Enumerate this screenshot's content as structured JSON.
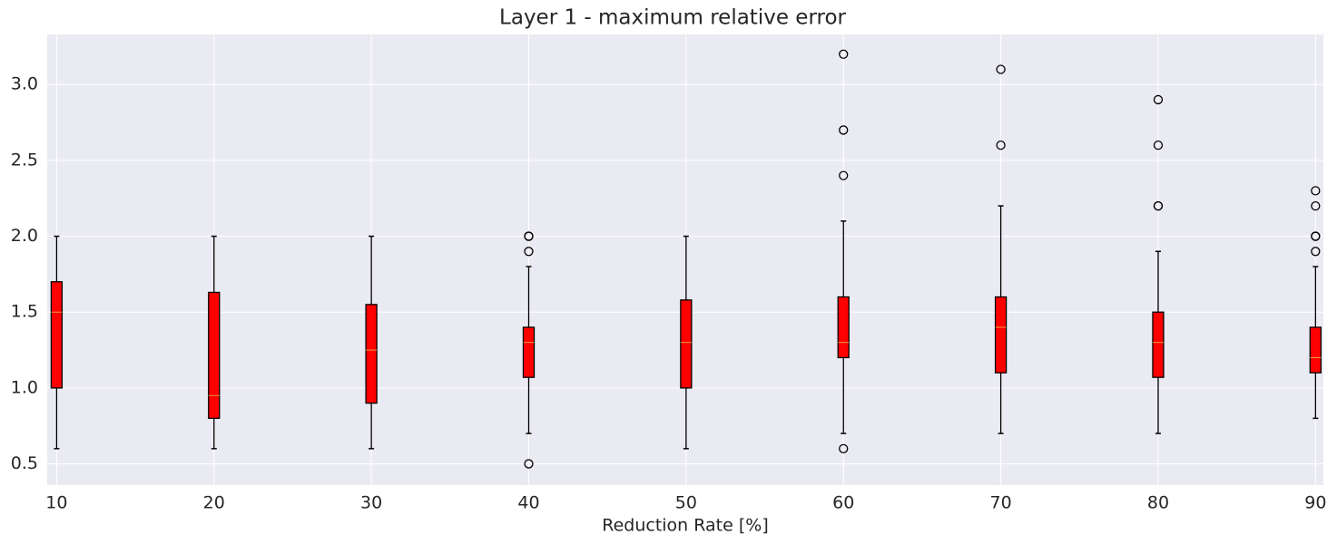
{
  "chart_data": {
    "type": "box",
    "title": "Layer 1 - maximum relative error",
    "x_label": "Reduction Rate [%]",
    "color": "#ff0000",
    "median_color": "#e6a23c",
    "grid": true,
    "xlim": [
      9.4,
      90.5
    ],
    "ylim": [
      0.36,
      3.33
    ],
    "xticks": [
      10,
      20,
      30,
      40,
      50,
      60,
      70,
      80,
      90
    ],
    "yticks": [
      0.5,
      {
        "value": 1.0,
        "label": "1.0"
      },
      1.5,
      {
        "value": 2.0,
        "label": "2.0"
      },
      2.5,
      {
        "value": 3.0,
        "label": "3.0"
      }
    ],
    "boxes": [
      {
        "x": 10,
        "whislo": 0.6,
        "q1": 1.0,
        "med": 1.5,
        "q3": 1.7,
        "whishi": 2.0,
        "fliers": []
      },
      {
        "x": 20,
        "whislo": 0.6,
        "q1": 0.8,
        "med": 0.95,
        "q3": 1.63,
        "whishi": 2.0,
        "fliers": []
      },
      {
        "x": 30,
        "whislo": 0.6,
        "q1": 0.9,
        "med": 1.25,
        "q3": 1.55,
        "whishi": 2.0,
        "fliers": []
      },
      {
        "x": 40,
        "whislo": 0.7,
        "q1": 1.07,
        "med": 1.3,
        "q3": 1.4,
        "whishi": 1.8,
        "fliers": [
          0.5,
          1.9,
          2.0,
          2.0
        ]
      },
      {
        "x": 50,
        "whislo": 0.6,
        "q1": 1.0,
        "med": 1.3,
        "q3": 1.58,
        "whishi": 2.0,
        "fliers": []
      },
      {
        "x": 60,
        "whislo": 0.7,
        "q1": 1.2,
        "med": 1.3,
        "q3": 1.6,
        "whishi": 2.1,
        "fliers": [
          0.6,
          2.4,
          2.7,
          3.2
        ]
      },
      {
        "x": 70,
        "whislo": 0.7,
        "q1": 1.1,
        "med": 1.4,
        "q3": 1.6,
        "whishi": 2.2,
        "fliers": [
          2.6,
          3.1
        ]
      },
      {
        "x": 80,
        "whislo": 0.7,
        "q1": 1.07,
        "med": 1.3,
        "q3": 1.5,
        "whishi": 1.9,
        "fliers": [
          2.2,
          2.2,
          2.6,
          2.9
        ]
      },
      {
        "x": 90,
        "whislo": 0.8,
        "q1": 1.1,
        "med": 1.2,
        "q3": 1.4,
        "whishi": 1.8,
        "fliers": [
          1.9,
          2.0,
          2.0,
          2.2,
          2.3
        ]
      }
    ]
  }
}
